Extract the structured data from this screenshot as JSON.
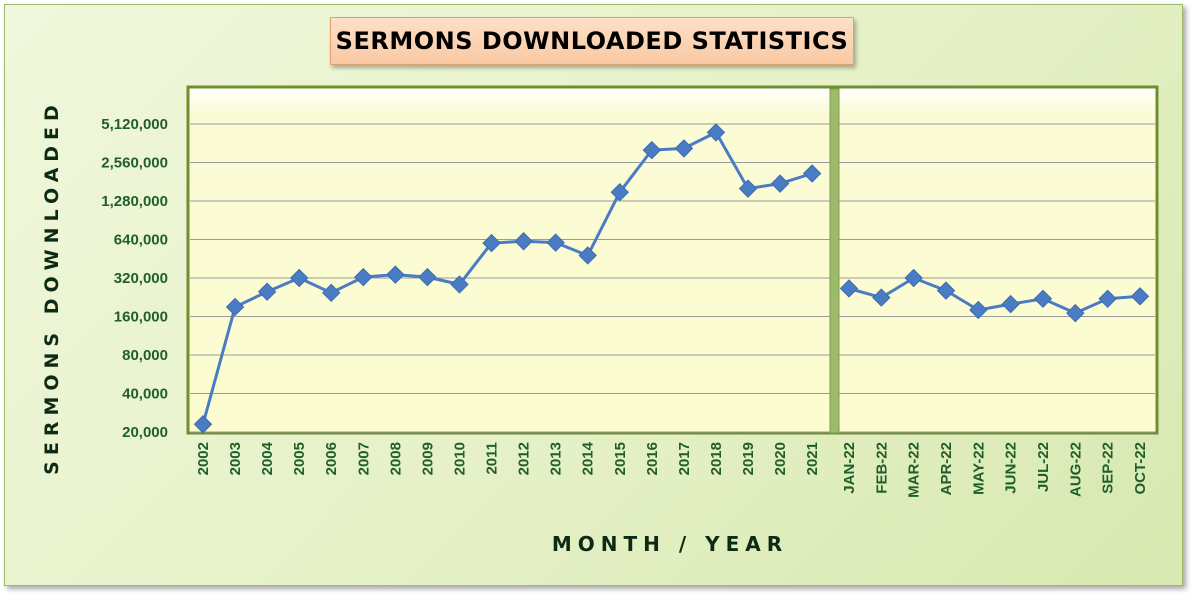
{
  "chart_data": {
    "type": "line",
    "title": "SERMONS DOWNLOADED STATISTICS",
    "xlabel": "MONTH / YEAR",
    "ylabel": "SERMONS DOWNLOADED",
    "y_scale": "log2",
    "ylim": [
      20000,
      5120000
    ],
    "y_ticks": [
      "20,000",
      "40,000",
      "80,000",
      "160,000",
      "320,000",
      "640,000",
      "1,280,000",
      "2,560,000",
      "5,120,000"
    ],
    "grid": true,
    "legend": "none",
    "line_color": "#4a7cc4",
    "panels": [
      {
        "name": "years",
        "categories": [
          "2002",
          "2003",
          "2004",
          "2005",
          "2006",
          "2007",
          "2008",
          "2009",
          "2010",
          "2011",
          "2012",
          "2013",
          "2014",
          "2015",
          "2016",
          "2017",
          "2018",
          "2019",
          "2020",
          "2021"
        ],
        "values": [
          23000,
          190000,
          250000,
          320000,
          245000,
          325000,
          340000,
          325000,
          285000,
          600000,
          620000,
          605000,
          480000,
          1500000,
          3200000,
          3300000,
          4400000,
          1600000,
          1750000,
          2100000
        ]
      },
      {
        "name": "months",
        "categories": [
          "JAN-22",
          "FEB-22",
          "MAR-22",
          "APR-22",
          "MAY-22",
          "JUN-22",
          "JUL-22",
          "AUG-22",
          "SEP-22",
          "OCT-22"
        ],
        "values": [
          265000,
          225000,
          320000,
          255000,
          180000,
          200000,
          220000,
          170000,
          220000,
          230000
        ]
      }
    ]
  },
  "colors": {
    "divider": "#9dbb6a",
    "plot_border": "#6f8f2f",
    "tick_text": "#1f5f2a",
    "axis_title": "#0d2b14"
  }
}
